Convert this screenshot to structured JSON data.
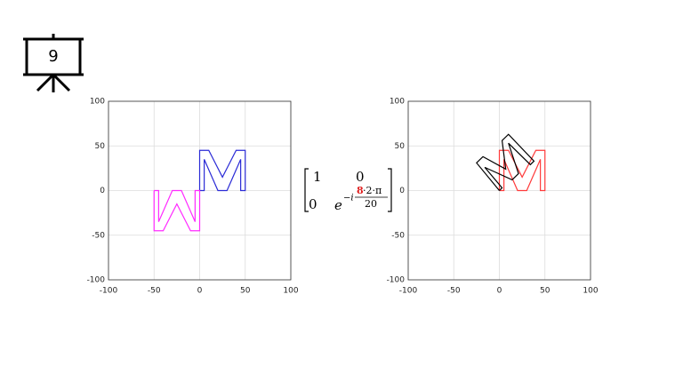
{
  "slide_number": "9",
  "chart_data": [
    {
      "type": "line",
      "xlim": [
        -100,
        100
      ],
      "ylim": [
        -100,
        100
      ],
      "xticks": [
        -100,
        -50,
        0,
        50,
        100
      ],
      "yticks": [
        -100,
        -50,
        0,
        50,
        100
      ],
      "grid": true,
      "series": [
        {
          "color": "#2b2bd6",
          "x": [
            0,
            0,
            10,
            25,
            40,
            50,
            50,
            45,
            45,
            30,
            20,
            5,
            5,
            0
          ],
          "y": [
            0,
            45,
            45,
            15,
            45,
            45,
            0,
            0,
            35,
            0,
            0,
            35,
            0,
            0
          ]
        },
        {
          "color": "#ff2bff",
          "x": [
            -50,
            -50,
            -40,
            -25,
            -10,
            0,
            0,
            -5,
            -5,
            -20,
            -30,
            -45,
            -45,
            -50
          ],
          "y": [
            0,
            -45,
            -45,
            -15,
            -45,
            -45,
            0,
            0,
            -35,
            0,
            0,
            -35,
            0,
            0
          ]
        }
      ]
    },
    {
      "type": "line",
      "xlim": [
        -100,
        100
      ],
      "ylim": [
        -100,
        100
      ],
      "xticks": [
        -100,
        -50,
        0,
        50,
        100
      ],
      "yticks": [
        -100,
        -50,
        0,
        50,
        100
      ],
      "grid": true,
      "series": [
        {
          "color": "#ff3a3a",
          "x": [
            0,
            0,
            10,
            25,
            40,
            50,
            50,
            45,
            45,
            30,
            20,
            5,
            5,
            0
          ],
          "y": [
            0,
            45,
            45,
            15,
            45,
            45,
            0,
            0,
            35,
            0,
            0,
            35,
            0,
            0
          ]
        },
        {
          "color": "#000000",
          "x": [
            0,
            -25,
            -18,
            7,
            3,
            10,
            38,
            34,
            10,
            21,
            14,
            -16,
            3,
            0
          ],
          "y": [
            0,
            31,
            38,
            24,
            56,
            63,
            33,
            29,
            53,
            19,
            12,
            26,
            3,
            0
          ]
        }
      ]
    }
  ],
  "matrix": {
    "r1c1": "1",
    "r1c2": "0",
    "r2c1": "0",
    "base": "e",
    "exp_prefix": "−i",
    "num_highlight": "8",
    "num_rest": "·2·π",
    "den": "20"
  }
}
